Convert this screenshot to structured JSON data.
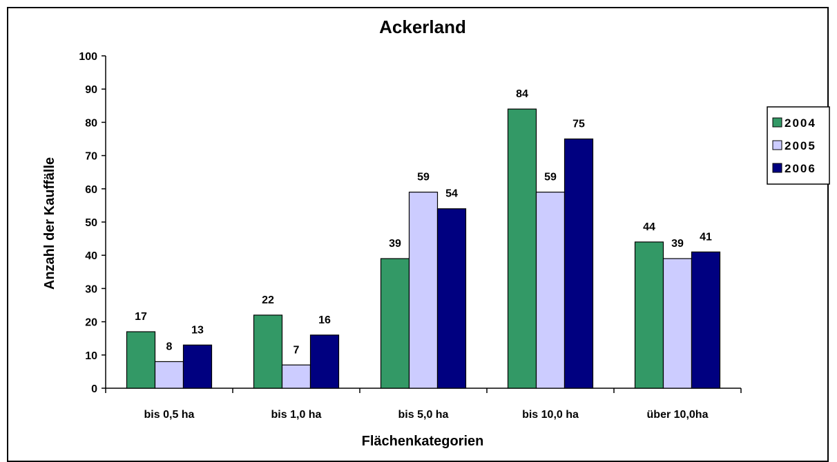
{
  "chart_data": {
    "type": "bar",
    "title": "Ackerland",
    "xlabel": "Flächenkategorien",
    "ylabel": "Anzahl der Kauffälle",
    "categories": [
      "bis 0,5 ha",
      "bis 1,0 ha",
      "bis 5,0 ha",
      "bis 10,0 ha",
      "über 10,0ha"
    ],
    "series": [
      {
        "name": "2004",
        "values": [
          17,
          22,
          39,
          84,
          44
        ],
        "color": "#339966"
      },
      {
        "name": "2005",
        "values": [
          8,
          7,
          59,
          59,
          39
        ],
        "color": "#ccccff"
      },
      {
        "name": "2006",
        "values": [
          13,
          16,
          54,
          75,
          41
        ],
        "color": "#000080"
      }
    ],
    "ylim": [
      0,
      100
    ],
    "yticks": [
      0,
      10,
      20,
      30,
      40,
      50,
      60,
      70,
      80,
      90,
      100
    ],
    "grid": false,
    "legend_position": "right",
    "data_labels": true
  }
}
